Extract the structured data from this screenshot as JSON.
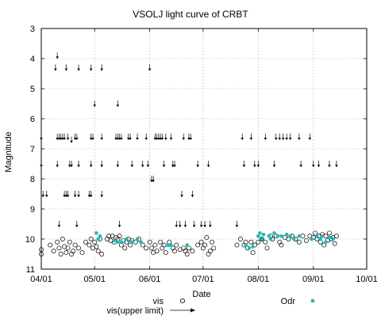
{
  "chart_data": {
    "type": "scatter",
    "title": "VSOLJ light curve of CRBT",
    "xlabel": "Date",
    "ylabel": "Magnitude",
    "xlim": [
      "04/01",
      "10/01"
    ],
    "ylim": [
      11,
      3
    ],
    "y_inverted": true,
    "grid": true,
    "legend_position": "bottom",
    "x_ticks": [
      "04/01",
      "05/01",
      "06/01",
      "07/01",
      "08/01",
      "09/01",
      "10/01"
    ],
    "y_ticks": [
      3,
      4,
      5,
      6,
      7,
      8,
      9,
      10,
      11
    ],
    "colors": {
      "vis": "#000000",
      "Odr": "#22b8b8"
    },
    "series": [
      {
        "name": "vis",
        "marker": "open-circle",
        "points": [
          {
            "x": "04/01",
            "y": 10.35
          },
          {
            "x": "04/01",
            "y": 10.5
          },
          {
            "x": "04/06",
            "y": 10.2
          },
          {
            "x": "04/08",
            "y": 10.4
          },
          {
            "x": "04/10",
            "y": 10.1
          },
          {
            "x": "04/11",
            "y": 10.3
          },
          {
            "x": "04/12",
            "y": 10.5
          },
          {
            "x": "04/13",
            "y": 10.0
          },
          {
            "x": "04/14",
            "y": 10.25
          },
          {
            "x": "04/15",
            "y": 10.45
          },
          {
            "x": "04/16",
            "y": 10.3
          },
          {
            "x": "04/17",
            "y": 10.1
          },
          {
            "x": "04/18",
            "y": 10.5
          },
          {
            "x": "04/19",
            "y": 10.4
          },
          {
            "x": "04/20",
            "y": 10.2
          },
          {
            "x": "04/22",
            "y": 10.3
          },
          {
            "x": "04/24",
            "y": 10.45
          },
          {
            "x": "04/26",
            "y": 10.1
          },
          {
            "x": "04/28",
            "y": 10.2
          },
          {
            "x": "04/29",
            "y": 10.0
          },
          {
            "x": "04/30",
            "y": 10.3
          },
          {
            "x": "05/01",
            "y": 10.1
          },
          {
            "x": "05/02",
            "y": 10.25
          },
          {
            "x": "05/03",
            "y": 10.4
          },
          {
            "x": "05/04",
            "y": 10.0
          },
          {
            "x": "05/05",
            "y": 10.5
          },
          {
            "x": "05/08",
            "y": 10.0
          },
          {
            "x": "05/09",
            "y": 9.9
          },
          {
            "x": "05/10",
            "y": 10.05
          },
          {
            "x": "05/11",
            "y": 9.9
          },
          {
            "x": "05/12",
            "y": 10.1
          },
          {
            "x": "05/13",
            "y": 9.95
          },
          {
            "x": "05/14",
            "y": 10.0
          },
          {
            "x": "05/15",
            "y": 9.9
          },
          {
            "x": "05/16",
            "y": 10.2
          },
          {
            "x": "05/17",
            "y": 10.05
          },
          {
            "x": "05/18",
            "y": 10.3
          },
          {
            "x": "05/19",
            "y": 10.1
          },
          {
            "x": "05/20",
            "y": 10.0
          },
          {
            "x": "05/21",
            "y": 10.2
          },
          {
            "x": "05/22",
            "y": 10.05
          },
          {
            "x": "05/24",
            "y": 10.1
          },
          {
            "x": "05/26",
            "y": 10.0
          },
          {
            "x": "05/28",
            "y": 10.2
          },
          {
            "x": "05/30",
            "y": 10.3
          },
          {
            "x": "06/01",
            "y": 10.1
          },
          {
            "x": "06/02",
            "y": 10.3
          },
          {
            "x": "06/03",
            "y": 10.45
          },
          {
            "x": "06/04",
            "y": 10.2
          },
          {
            "x": "06/05",
            "y": 10.4
          },
          {
            "x": "06/07",
            "y": 10.1
          },
          {
            "x": "06/08",
            "y": 10.3
          },
          {
            "x": "06/09",
            "y": 10.2
          },
          {
            "x": "06/10",
            "y": 10.45
          },
          {
            "x": "06/12",
            "y": 10.1
          },
          {
            "x": "06/14",
            "y": 10.3
          },
          {
            "x": "06/15",
            "y": 10.4
          },
          {
            "x": "06/16",
            "y": 10.2
          },
          {
            "x": "06/18",
            "y": 10.35
          },
          {
            "x": "06/20",
            "y": 10.3
          },
          {
            "x": "06/21",
            "y": 10.4
          },
          {
            "x": "06/22",
            "y": 10.5
          },
          {
            "x": "06/23",
            "y": 10.3
          },
          {
            "x": "06/25",
            "y": 10.4
          },
          {
            "x": "06/28",
            "y": 10.2
          },
          {
            "x": "06/30",
            "y": 10.1
          },
          {
            "x": "07/01",
            "y": 10.3
          },
          {
            "x": "07/02",
            "y": 10.2
          },
          {
            "x": "07/03",
            "y": 9.95
          },
          {
            "x": "07/04",
            "y": 10.5
          },
          {
            "x": "07/05",
            "y": 10.4
          },
          {
            "x": "07/06",
            "y": 10.1
          },
          {
            "x": "07/07",
            "y": 10.3
          },
          {
            "x": "07/20",
            "y": 10.2
          },
          {
            "x": "07/22",
            "y": 10.0
          },
          {
            "x": "07/24",
            "y": 10.2
          },
          {
            "x": "07/25",
            "y": 10.1
          },
          {
            "x": "07/26",
            "y": 10.3
          },
          {
            "x": "07/28",
            "y": 10.1
          },
          {
            "x": "07/29",
            "y": 10.45
          },
          {
            "x": "07/30",
            "y": 10.2
          },
          {
            "x": "08/01",
            "y": 10.1
          },
          {
            "x": "08/03",
            "y": 10.0
          },
          {
            "x": "08/05",
            "y": 10.1
          },
          {
            "x": "08/06",
            "y": 10.3
          },
          {
            "x": "08/08",
            "y": 9.9
          },
          {
            "x": "08/09",
            "y": 10.0
          },
          {
            "x": "08/11",
            "y": 9.9
          },
          {
            "x": "08/13",
            "y": 10.1
          },
          {
            "x": "08/14",
            "y": 10.2
          },
          {
            "x": "08/16",
            "y": 9.95
          },
          {
            "x": "08/18",
            "y": 10.0
          },
          {
            "x": "08/20",
            "y": 9.9
          },
          {
            "x": "08/22",
            "y": 10.0
          },
          {
            "x": "08/24",
            "y": 10.1
          },
          {
            "x": "08/26",
            "y": 9.9
          },
          {
            "x": "08/28",
            "y": 10.05
          },
          {
            "x": "08/30",
            "y": 9.9
          },
          {
            "x": "09/01",
            "y": 9.95
          },
          {
            "x": "09/02",
            "y": 9.8
          },
          {
            "x": "09/03",
            "y": 10.0
          },
          {
            "x": "09/04",
            "y": 9.9
          },
          {
            "x": "09/05",
            "y": 10.1
          },
          {
            "x": "09/06",
            "y": 9.85
          },
          {
            "x": "09/07",
            "y": 10.2
          },
          {
            "x": "09/08",
            "y": 9.9
          },
          {
            "x": "09/09",
            "y": 10.05
          },
          {
            "x": "09/10",
            "y": 9.8
          },
          {
            "x": "09/11",
            "y": 10.0
          },
          {
            "x": "09/12",
            "y": 9.95
          },
          {
            "x": "09/13",
            "y": 10.15
          },
          {
            "x": "09/14",
            "y": 9.9
          }
        ]
      },
      {
        "name": "vis(upper limit)",
        "marker": "down-arrow",
        "points": [
          {
            "x": "04/01",
            "y": 6.6
          },
          {
            "x": "04/01",
            "y": 7.5
          },
          {
            "x": "04/02",
            "y": 8.5
          },
          {
            "x": "04/04",
            "y": 8.5
          },
          {
            "x": "04/10",
            "y": 3.9
          },
          {
            "x": "04/09",
            "y": 4.3
          },
          {
            "x": "04/10",
            "y": 6.6
          },
          {
            "x": "04/11",
            "y": 6.6
          },
          {
            "x": "04/12",
            "y": 6.6
          },
          {
            "x": "04/13",
            "y": 6.6
          },
          {
            "x": "04/14",
            "y": 6.6
          },
          {
            "x": "04/10",
            "y": 7.5
          },
          {
            "x": "04/11",
            "y": 9.5
          },
          {
            "x": "04/14",
            "y": 8.5
          },
          {
            "x": "04/15",
            "y": 8.5
          },
          {
            "x": "04/16",
            "y": 8.5
          },
          {
            "x": "04/15",
            "y": 4.3
          },
          {
            "x": "04/16",
            "y": 6.6
          },
          {
            "x": "04/17",
            "y": 7.5
          },
          {
            "x": "04/18",
            "y": 7.5
          },
          {
            "x": "04/18",
            "y": 6.7
          },
          {
            "x": "04/20",
            "y": 6.6
          },
          {
            "x": "04/21",
            "y": 6.6
          },
          {
            "x": "04/20",
            "y": 8.5
          },
          {
            "x": "04/21",
            "y": 9.5
          },
          {
            "x": "04/22",
            "y": 7.5
          },
          {
            "x": "04/22",
            "y": 8.5
          },
          {
            "x": "04/22",
            "y": 4.3
          },
          {
            "x": "04/29",
            "y": 4.3
          },
          {
            "x": "04/29",
            "y": 6.6
          },
          {
            "x": "04/30",
            "y": 6.6
          },
          {
            "x": "04/29",
            "y": 7.5
          },
          {
            "x": "04/29",
            "y": 8.5
          },
          {
            "x": "05/01",
            "y": 5.5
          },
          {
            "x": "04/28",
            "y": 8.5
          },
          {
            "x": "05/05",
            "y": 4.3
          },
          {
            "x": "05/05",
            "y": 6.6
          },
          {
            "x": "05/05",
            "y": 7.5
          },
          {
            "x": "05/05",
            "y": 8.5
          },
          {
            "x": "05/14",
            "y": 5.5
          },
          {
            "x": "05/13",
            "y": 6.6
          },
          {
            "x": "05/14",
            "y": 6.6
          },
          {
            "x": "05/15",
            "y": 6.6
          },
          {
            "x": "05/16",
            "y": 6.6
          },
          {
            "x": "05/14",
            "y": 7.5
          },
          {
            "x": "05/15",
            "y": 9.5
          },
          {
            "x": "05/20",
            "y": 6.6
          },
          {
            "x": "05/21",
            "y": 6.6
          },
          {
            "x": "05/22",
            "y": 7.5
          },
          {
            "x": "05/25",
            "y": 6.6
          },
          {
            "x": "05/28",
            "y": 7.5
          },
          {
            "x": "05/30",
            "y": 6.6
          },
          {
            "x": "05/31",
            "y": 7.5
          },
          {
            "x": "06/01",
            "y": 4.3
          },
          {
            "x": "06/02",
            "y": 8.0
          },
          {
            "x": "06/03",
            "y": 8.0
          },
          {
            "x": "06/04",
            "y": 6.6
          },
          {
            "x": "06/05",
            "y": 6.6
          },
          {
            "x": "06/06",
            "y": 6.6
          },
          {
            "x": "06/07",
            "y": 6.6
          },
          {
            "x": "06/08",
            "y": 6.6
          },
          {
            "x": "06/09",
            "y": 7.5
          },
          {
            "x": "06/10",
            "y": 6.6
          },
          {
            "x": "06/13",
            "y": 6.6
          },
          {
            "x": "06/14",
            "y": 7.5
          },
          {
            "x": "06/15",
            "y": 7.5
          },
          {
            "x": "06/16",
            "y": 9.5
          },
          {
            "x": "06/18",
            "y": 9.5
          },
          {
            "x": "06/19",
            "y": 8.5
          },
          {
            "x": "06/20",
            "y": 6.6
          },
          {
            "x": "06/21",
            "y": 9.5
          },
          {
            "x": "06/23",
            "y": 6.6
          },
          {
            "x": "06/24",
            "y": 6.6
          },
          {
            "x": "06/25",
            "y": 8.5
          },
          {
            "x": "06/26",
            "y": 9.5
          },
          {
            "x": "06/28",
            "y": 7.5
          },
          {
            "x": "06/30",
            "y": 9.5
          },
          {
            "x": "07/02",
            "y": 9.5
          },
          {
            "x": "07/04",
            "y": 7.5
          },
          {
            "x": "07/05",
            "y": 9.5
          },
          {
            "x": "07/20",
            "y": 9.5
          },
          {
            "x": "07/23",
            "y": 6.6
          },
          {
            "x": "07/24",
            "y": 7.5
          },
          {
            "x": "07/28",
            "y": 6.6
          },
          {
            "x": "07/30",
            "y": 7.5
          },
          {
            "x": "08/01",
            "y": 7.5
          },
          {
            "x": "08/05",
            "y": 6.6
          },
          {
            "x": "08/10",
            "y": 7.5
          },
          {
            "x": "08/11",
            "y": 6.6
          },
          {
            "x": "08/13",
            "y": 6.6
          },
          {
            "x": "08/15",
            "y": 6.6
          },
          {
            "x": "08/17",
            "y": 6.6
          },
          {
            "x": "08/19",
            "y": 6.6
          },
          {
            "x": "08/24",
            "y": 6.6
          },
          {
            "x": "08/25",
            "y": 7.5
          },
          {
            "x": "08/30",
            "y": 6.6
          },
          {
            "x": "09/01",
            "y": 7.5
          },
          {
            "x": "09/04",
            "y": 7.5
          },
          {
            "x": "09/10",
            "y": 7.5
          },
          {
            "x": "09/14",
            "y": 7.5
          }
        ]
      },
      {
        "name": "Odr",
        "marker": "filled-circle",
        "points": [
          {
            "x": "05/02",
            "y": 9.8
          },
          {
            "x": "05/03",
            "y": 10.0
          },
          {
            "x": "05/04",
            "y": 9.9
          },
          {
            "x": "05/12",
            "y": 10.05
          },
          {
            "x": "05/14",
            "y": 10.1
          },
          {
            "x": "05/16",
            "y": 10.1
          },
          {
            "x": "05/19",
            "y": 10.0
          },
          {
            "x": "05/22",
            "y": 10.1
          },
          {
            "x": "05/25",
            "y": 10.0
          },
          {
            "x": "05/27",
            "y": 10.1
          },
          {
            "x": "06/11",
            "y": 10.2
          },
          {
            "x": "06/12",
            "y": 10.2
          },
          {
            "x": "06/13",
            "y": 10.2
          },
          {
            "x": "06/22",
            "y": 10.2
          },
          {
            "x": "07/25",
            "y": 10.2
          },
          {
            "x": "07/27",
            "y": 10.3
          },
          {
            "x": "07/29",
            "y": 10.25
          },
          {
            "x": "08/01",
            "y": 9.9
          },
          {
            "x": "08/02",
            "y": 9.8
          },
          {
            "x": "08/03",
            "y": 10.0
          },
          {
            "x": "08/04",
            "y": 9.85
          },
          {
            "x": "08/07",
            "y": 9.9
          },
          {
            "x": "08/08",
            "y": 10.0
          },
          {
            "x": "08/10",
            "y": 9.8
          },
          {
            "x": "08/12",
            "y": 9.9
          },
          {
            "x": "08/14",
            "y": 9.9
          },
          {
            "x": "08/17",
            "y": 9.85
          },
          {
            "x": "08/19",
            "y": 9.9
          },
          {
            "x": "08/21",
            "y": 10.0
          },
          {
            "x": "08/24",
            "y": 9.9
          },
          {
            "x": "08/31",
            "y": 10.0
          },
          {
            "x": "09/03",
            "y": 9.9
          },
          {
            "x": "09/05",
            "y": 10.0
          },
          {
            "x": "09/06",
            "y": 9.9
          },
          {
            "x": "09/08",
            "y": 10.1
          },
          {
            "x": "09/10",
            "y": 9.95
          },
          {
            "x": "09/12",
            "y": 10.0
          }
        ]
      }
    ]
  },
  "legend": {
    "vis_label": "vis",
    "upper_label": "vis(upper limit)",
    "odr_label": "Odr"
  }
}
